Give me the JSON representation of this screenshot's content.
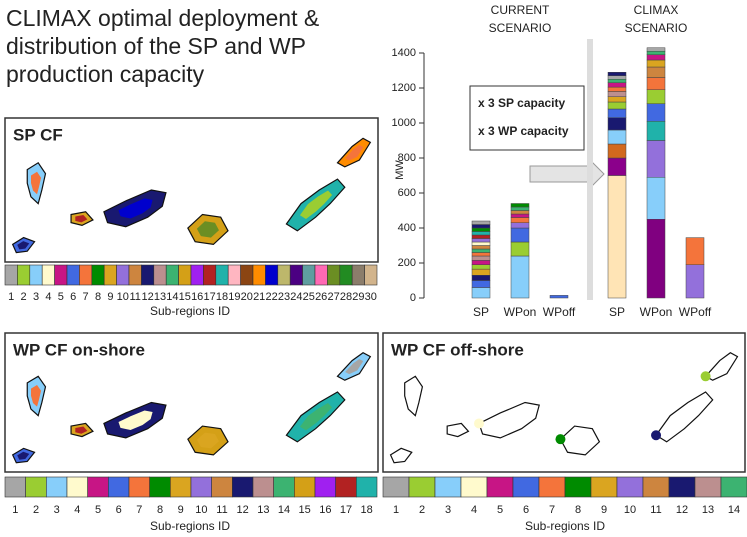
{
  "title": [
    "CLIMAX optimal deployment &",
    "distribution of the SP and WP",
    "production capacity"
  ],
  "panels": [
    {
      "label": "SP CF",
      "axis_label": "Sub-regions ID",
      "legend": {
        "ids": [
          1,
          2,
          3,
          4,
          5,
          6,
          7,
          8,
          9,
          10,
          11,
          12,
          13,
          14,
          15,
          16,
          17,
          18,
          19,
          20,
          21,
          22,
          23,
          24,
          25,
          26,
          27,
          28,
          29,
          30
        ],
        "colors": [
          "#a6a6a6",
          "#9acd32",
          "#87cefa",
          "#fffacd",
          "#c71585",
          "#4169e1",
          "#f4743b",
          "#008b00",
          "#daa520",
          "#9370db",
          "#cd853f",
          "#191970",
          "#bc8f8f",
          "#3cb371",
          "#d4a017",
          "#a020f0",
          "#b22222",
          "#20b2aa",
          "#ffb6c1",
          "#8b4513",
          "#ff8c00",
          "#0000cd",
          "#bdb76b",
          "#4b0082",
          "#5f9ea0",
          "#ff69b4",
          "#6b8e23",
          "#228b22",
          "#8b7d6b",
          "#d2b48c"
        ]
      }
    },
    {
      "label": "WP CF on-shore",
      "axis_label": "Sub-regions ID",
      "legend": {
        "ids": [
          1,
          2,
          3,
          4,
          5,
          6,
          7,
          8,
          9,
          10,
          11,
          12,
          13,
          14,
          15,
          16,
          17,
          18
        ],
        "colors": [
          "#a6a6a6",
          "#9acd32",
          "#87cefa",
          "#fffacd",
          "#c71585",
          "#4169e1",
          "#f4743b",
          "#008b00",
          "#daa520",
          "#9370db",
          "#cd853f",
          "#191970",
          "#bc8f8f",
          "#3cb371",
          "#d4a017",
          "#a020f0",
          "#b22222",
          "#20b2aa"
        ]
      }
    },
    {
      "label": "WP CF off-shore",
      "axis_label": "Sub-regions ID",
      "legend": {
        "ids": [
          1,
          2,
          3,
          4,
          5,
          6,
          7,
          8,
          9,
          10,
          11,
          12,
          13,
          14
        ],
        "colors": [
          "#a6a6a6",
          "#9acd32",
          "#87cefa",
          "#fffacd",
          "#c71585",
          "#4169e1",
          "#f4743b",
          "#008b00",
          "#daa520",
          "#9370db",
          "#cd853f",
          "#191970",
          "#bc8f8f",
          "#3cb371"
        ]
      }
    }
  ],
  "chart_data": {
    "type": "bar",
    "stacked": true,
    "y_label": "MW",
    "ylim": [
      0,
      1480
    ],
    "yticks": [
      0,
      200,
      400,
      600,
      800,
      1000,
      1200,
      1400
    ],
    "annotations": [
      "x 3 SP capacity",
      "x 3 WP capacity"
    ],
    "groups": [
      {
        "label": [
          "CURRENT",
          "SCENARIO"
        ],
        "bars": [
          {
            "category": "SP",
            "segments": [
              {
                "value": 60,
                "color": "#87cefa"
              },
              {
                "value": 40,
                "color": "#4169e1"
              },
              {
                "value": 30,
                "color": "#191970"
              },
              {
                "value": 35,
                "color": "#daa520"
              },
              {
                "value": 25,
                "color": "#9acd32"
              },
              {
                "value": 25,
                "color": "#c71585"
              },
              {
                "value": 25,
                "color": "#bc8f8f"
              },
              {
                "value": 20,
                "color": "#f4743b"
              },
              {
                "value": 20,
                "color": "#3cb371"
              },
              {
                "value": 20,
                "color": "#cd853f"
              },
              {
                "value": 20,
                "color": "#fffacd"
              },
              {
                "value": 20,
                "color": "#9370db"
              },
              {
                "value": 20,
                "color": "#b22222"
              },
              {
                "value": 20,
                "color": "#20b2aa"
              },
              {
                "value": 20,
                "color": "#008b00"
              },
              {
                "value": 20,
                "color": "#191970"
              },
              {
                "value": 20,
                "color": "#a6a6a6"
              }
            ]
          },
          {
            "category": "WPon",
            "segments": [
              {
                "value": 240,
                "color": "#87cefa"
              },
              {
                "value": 80,
                "color": "#9acd32"
              },
              {
                "value": 80,
                "color": "#4169e1"
              },
              {
                "value": 30,
                "color": "#9370db"
              },
              {
                "value": 30,
                "color": "#f4743b"
              },
              {
                "value": 20,
                "color": "#c71585"
              },
              {
                "value": 20,
                "color": "#cd853f"
              },
              {
                "value": 20,
                "color": "#3cb371"
              },
              {
                "value": 20,
                "color": "#008b00"
              }
            ]
          },
          {
            "category": "WPoff",
            "segments": [
              {
                "value": 15,
                "color": "#4169e1"
              }
            ]
          }
        ]
      },
      {
        "label": [
          "CLIMAX",
          "SCENARIO"
        ],
        "bars": [
          {
            "category": "SP",
            "segments": [
              {
                "value": 700,
                "color": "#ffe4b5"
              },
              {
                "value": 100,
                "color": "#8b008b"
              },
              {
                "value": 80,
                "color": "#d2691e"
              },
              {
                "value": 80,
                "color": "#87cefa"
              },
              {
                "value": 70,
                "color": "#191970"
              },
              {
                "value": 50,
                "color": "#4169e1"
              },
              {
                "value": 40,
                "color": "#9acd32"
              },
              {
                "value": 30,
                "color": "#daa520"
              },
              {
                "value": 30,
                "color": "#bc8f8f"
              },
              {
                "value": 25,
                "color": "#f4743b"
              },
              {
                "value": 25,
                "color": "#c71585"
              },
              {
                "value": 20,
                "color": "#3cb371"
              },
              {
                "value": 20,
                "color": "#a6a6a6"
              },
              {
                "value": 20,
                "color": "#191970"
              }
            ]
          },
          {
            "category": "WPon",
            "segments": [
              {
                "value": 450,
                "color": "#800080"
              },
              {
                "value": 240,
                "color": "#87cefa"
              },
              {
                "value": 210,
                "color": "#9370db"
              },
              {
                "value": 110,
                "color": "#20b2aa"
              },
              {
                "value": 100,
                "color": "#4169e1"
              },
              {
                "value": 80,
                "color": "#9acd32"
              },
              {
                "value": 70,
                "color": "#f4743b"
              },
              {
                "value": 60,
                "color": "#cd853f"
              },
              {
                "value": 40,
                "color": "#daa520"
              },
              {
                "value": 30,
                "color": "#c71585"
              },
              {
                "value": 20,
                "color": "#3cb371"
              },
              {
                "value": 20,
                "color": "#a6a6a6"
              }
            ]
          },
          {
            "category": "WPoff",
            "segments": [
              {
                "value": 190,
                "color": "#9370db"
              },
              {
                "value": 155,
                "color": "#f4743b"
              }
            ]
          }
        ]
      }
    ]
  }
}
